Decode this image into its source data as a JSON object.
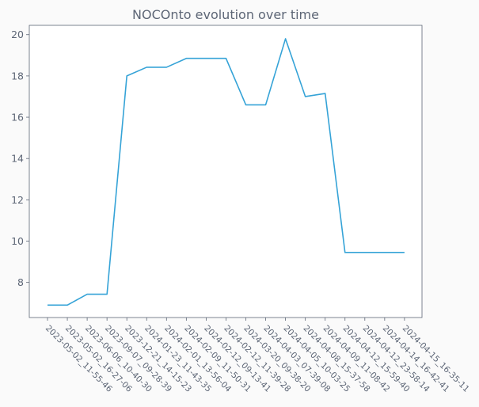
{
  "chart_data": {
    "type": "line",
    "title": "NOCOnto evolution over time",
    "xlabel": "",
    "ylabel": "",
    "categories": [
      "2023-05-02_11-55-46",
      "2023-05-02_16-27-06",
      "2023-06-06_10-40-30",
      "2023-09-07_09-28-39",
      "2023-12-21_14-15-23",
      "2024-01-23_11-43-35",
      "2024-02-01_13-56-04",
      "2024-02-09_11-50-31",
      "2024-02-12_09-13-41",
      "2024-02-12_11-39-28",
      "2024-03-20_09-38-20",
      "2024-04-03_07-39-08",
      "2024-04-05_10-03-25",
      "2024-04-08_15-37-58",
      "2024-04-09_11-08-42",
      "2024-04-12_15-59-40",
      "2024-04-12_23-58-14",
      "2024-04-14_16-42-41",
      "2024-04-15_16-35-11"
    ],
    "series": [
      {
        "values": [
          6.9,
          6.9,
          7.43,
          7.43,
          18.0,
          18.42,
          18.42,
          18.85,
          18.85,
          18.85,
          16.6,
          16.6,
          19.8,
          17.0,
          17.15,
          9.45,
          9.45,
          9.45,
          9.45
        ],
        "color": "#35a3d7"
      }
    ],
    "yticks": [
      8,
      10,
      12,
      14,
      16,
      18,
      20
    ],
    "ylim": [
      6.3,
      20.45
    ],
    "grid": false,
    "legend": "none"
  }
}
